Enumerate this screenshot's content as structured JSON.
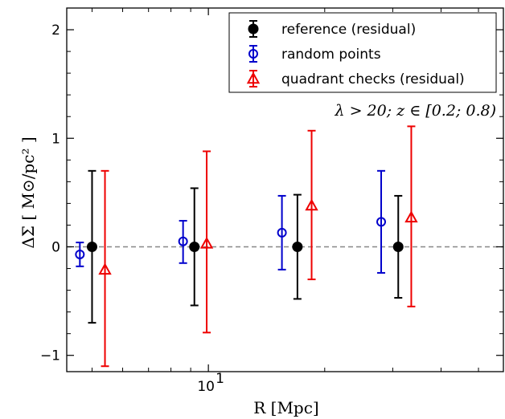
{
  "chart_data": {
    "type": "scatter",
    "xlabel": "R [Mpc]",
    "ylabel": "ΔΣ [ M⊙/pc² ]",
    "x_scale": "log",
    "xlim": [
      4.3,
      58
    ],
    "ylim": [
      -1.15,
      2.2
    ],
    "x_ticks": [
      {
        "value": 10,
        "label": "10"
      }
    ],
    "x_tick_label_exponent": "1",
    "y_ticks": [
      {
        "value": -1,
        "label": "−1"
      },
      {
        "value": 0,
        "label": "0"
      },
      {
        "value": 1,
        "label": "1"
      },
      {
        "value": 2,
        "label": "2"
      }
    ],
    "annotation": "λ > 20;  z ∈ [0.2; 0.8)",
    "reference_line": {
      "y": 0,
      "style": "dashed",
      "color": "#888888"
    },
    "legend_position": "top-right",
    "grid": false,
    "series": [
      {
        "name": "reference (residual)",
        "marker": "filled-circle",
        "color": "#000000",
        "points": [
          {
            "x": 5.0,
            "y": 0.0,
            "yerr_low": -0.7,
            "yerr_high": 0.7
          },
          {
            "x": 9.2,
            "y": 0.0,
            "yerr_low": -0.54,
            "yerr_high": 0.54
          },
          {
            "x": 17.0,
            "y": 0.0,
            "yerr_low": -0.48,
            "yerr_high": 0.48
          },
          {
            "x": 31.0,
            "y": 0.0,
            "yerr_low": -0.47,
            "yerr_high": 0.47
          }
        ]
      },
      {
        "name": "random points",
        "marker": "open-circle",
        "color": "#0000cc",
        "points": [
          {
            "x": 4.65,
            "y": -0.07,
            "yerr_low": -0.18,
            "yerr_high": 0.04
          },
          {
            "x": 8.6,
            "y": 0.05,
            "yerr_low": -0.15,
            "yerr_high": 0.24
          },
          {
            "x": 15.5,
            "y": 0.13,
            "yerr_low": -0.21,
            "yerr_high": 0.47
          },
          {
            "x": 28.0,
            "y": 0.23,
            "yerr_low": -0.24,
            "yerr_high": 0.7
          }
        ]
      },
      {
        "name": "quadrant checks (residual)",
        "marker": "open-triangle",
        "color": "#ee0000",
        "points": [
          {
            "x": 5.4,
            "y": -0.21,
            "yerr_low": -1.1,
            "yerr_high": 0.7
          },
          {
            "x": 9.9,
            "y": 0.03,
            "yerr_low": -0.79,
            "yerr_high": 0.88
          },
          {
            "x": 18.5,
            "y": 0.38,
            "yerr_low": -0.3,
            "yerr_high": 1.07
          },
          {
            "x": 33.5,
            "y": 0.27,
            "yerr_low": -0.55,
            "yerr_high": 1.11
          }
        ]
      }
    ]
  }
}
